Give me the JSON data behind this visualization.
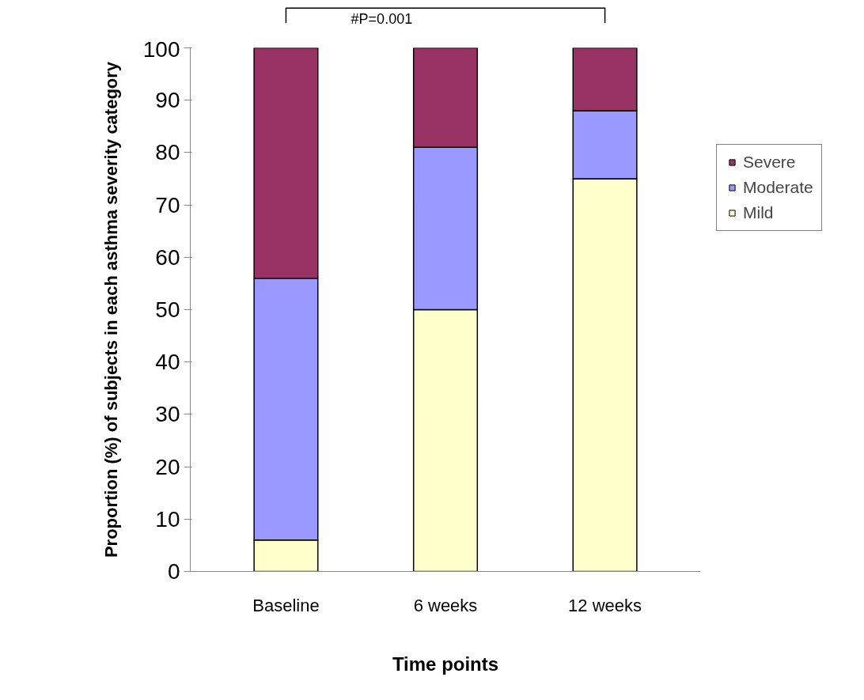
{
  "chart_data": {
    "type": "bar",
    "stacked": true,
    "xlabel": "Time points",
    "ylabel": "Proportion (%) of subjects in each asthma severity category",
    "categories": [
      "Baseline",
      "6 weeks",
      "12 weeks"
    ],
    "series": [
      {
        "name": "Mild",
        "color": "#ffffcc",
        "values": [
          6,
          50,
          75
        ]
      },
      {
        "name": "Moderate",
        "color": "#9999ff",
        "values": [
          50,
          31,
          13
        ]
      },
      {
        "name": "Severe",
        "color": "#993366",
        "values": [
          44,
          19,
          12
        ]
      }
    ],
    "ylim": [
      0,
      100
    ],
    "yticks": [
      0,
      10,
      20,
      30,
      40,
      50,
      60,
      70,
      80,
      90,
      100
    ],
    "grid": false,
    "legend": "right",
    "annotations": [
      "#P=0.001"
    ]
  }
}
